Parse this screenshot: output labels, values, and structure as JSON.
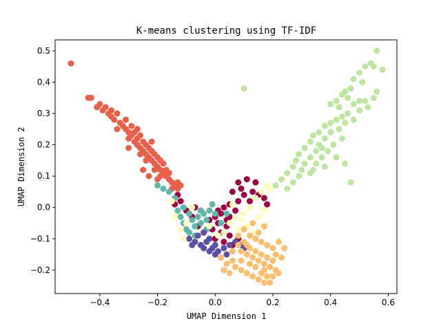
{
  "chart_data": {
    "type": "scatter",
    "title": "K-means clustering using TF-IDF",
    "xlabel": "UMAP Dimension 1",
    "ylabel": "UMAP Dimension 2",
    "xlim": [
      -0.555,
      0.63
    ],
    "ylim": [
      -0.275,
      0.535
    ],
    "xticks": [
      -0.4,
      -0.2,
      0.0,
      0.2,
      0.4,
      0.6
    ],
    "xtick_labels": [
      "−0.4",
      "−0.2",
      "0.0",
      "0.2",
      "0.4",
      "0.6"
    ],
    "yticks": [
      -0.2,
      -0.1,
      0.0,
      0.1,
      0.2,
      0.3,
      0.4,
      0.5
    ],
    "ytick_labels": [
      "−0.2",
      "−0.1",
      "0.0",
      "0.1",
      "0.2",
      "0.3",
      "0.4",
      "0.5"
    ],
    "grid": false,
    "legend": "none",
    "series": [
      {
        "color": "#e8604a",
        "points": [
          [
            -0.5,
            0.46
          ],
          [
            -0.44,
            0.35
          ],
          [
            -0.43,
            0.35
          ],
          [
            -0.41,
            0.32
          ],
          [
            -0.4,
            0.33
          ],
          [
            -0.39,
            0.31
          ],
          [
            -0.38,
            0.32
          ],
          [
            -0.37,
            0.3
          ],
          [
            -0.36,
            0.29
          ],
          [
            -0.36,
            0.31
          ],
          [
            -0.35,
            0.28
          ],
          [
            -0.34,
            0.3
          ],
          [
            -0.33,
            0.27
          ],
          [
            -0.34,
            0.25
          ],
          [
            -0.32,
            0.26
          ],
          [
            -0.31,
            0.25
          ],
          [
            -0.31,
            0.28
          ],
          [
            -0.3,
            0.24
          ],
          [
            -0.3,
            0.22
          ],
          [
            -0.29,
            0.26
          ],
          [
            -0.29,
            0.23
          ],
          [
            -0.28,
            0.21
          ],
          [
            -0.28,
            0.24
          ],
          [
            -0.27,
            0.22
          ],
          [
            -0.27,
            0.2
          ],
          [
            -0.26,
            0.19
          ],
          [
            -0.26,
            0.23
          ],
          [
            -0.25,
            0.18
          ],
          [
            -0.25,
            0.21
          ],
          [
            -0.24,
            0.17
          ],
          [
            -0.24,
            0.2
          ],
          [
            -0.23,
            0.16
          ],
          [
            -0.23,
            0.19
          ],
          [
            -0.22,
            0.15
          ],
          [
            -0.22,
            0.18
          ],
          [
            -0.21,
            0.14
          ],
          [
            -0.21,
            0.17
          ],
          [
            -0.2,
            0.13
          ],
          [
            -0.2,
            0.16
          ],
          [
            -0.19,
            0.12
          ],
          [
            -0.19,
            0.15
          ],
          [
            -0.18,
            0.11
          ],
          [
            -0.18,
            0.14
          ],
          [
            -0.17,
            0.1
          ],
          [
            -0.17,
            0.12
          ],
          [
            -0.16,
            0.09
          ],
          [
            -0.16,
            0.11
          ],
          [
            -0.15,
            0.08
          ],
          [
            -0.14,
            0.07
          ],
          [
            -0.13,
            0.08
          ],
          [
            -0.12,
            0.07
          ],
          [
            -0.26,
            0.17
          ],
          [
            -0.24,
            0.15
          ],
          [
            -0.21,
            0.12
          ],
          [
            -0.19,
            0.1
          ],
          [
            -0.22,
            0.21
          ],
          [
            -0.27,
            0.25
          ],
          [
            -0.3,
            0.19
          ],
          [
            -0.25,
            0.12
          ],
          [
            -0.23,
            0.1
          ],
          [
            -0.2,
            0.09
          ],
          [
            -0.15,
            0.06
          ],
          [
            -0.13,
            0.06
          ]
        ]
      },
      {
        "color": "#bde5a0",
        "points": [
          [
            0.1,
            0.38
          ],
          [
            0.56,
            0.5
          ],
          [
            0.54,
            0.46
          ],
          [
            0.52,
            0.45
          ],
          [
            0.55,
            0.45
          ],
          [
            0.58,
            0.44
          ],
          [
            0.5,
            0.43
          ],
          [
            0.48,
            0.41
          ],
          [
            0.47,
            0.38
          ],
          [
            0.45,
            0.37
          ],
          [
            0.44,
            0.36
          ],
          [
            0.46,
            0.35
          ],
          [
            0.42,
            0.34
          ],
          [
            0.4,
            0.33
          ],
          [
            0.43,
            0.32
          ],
          [
            0.48,
            0.33
          ],
          [
            0.52,
            0.34
          ],
          [
            0.55,
            0.35
          ],
          [
            0.53,
            0.32
          ],
          [
            0.5,
            0.31
          ],
          [
            0.46,
            0.3
          ],
          [
            0.44,
            0.29
          ],
          [
            0.42,
            0.28
          ],
          [
            0.48,
            0.28
          ],
          [
            0.4,
            0.27
          ],
          [
            0.45,
            0.27
          ],
          [
            0.38,
            0.26
          ],
          [
            0.43,
            0.25
          ],
          [
            0.36,
            0.24
          ],
          [
            0.4,
            0.24
          ],
          [
            0.34,
            0.23
          ],
          [
            0.38,
            0.22
          ],
          [
            0.44,
            0.22
          ],
          [
            0.33,
            0.21
          ],
          [
            0.36,
            0.2
          ],
          [
            0.41,
            0.2
          ],
          [
            0.31,
            0.19
          ],
          [
            0.35,
            0.18
          ],
          [
            0.39,
            0.18
          ],
          [
            0.29,
            0.17
          ],
          [
            0.33,
            0.16
          ],
          [
            0.37,
            0.16
          ],
          [
            0.42,
            0.16
          ],
          [
            0.28,
            0.15
          ],
          [
            0.31,
            0.14
          ],
          [
            0.35,
            0.14
          ],
          [
            0.27,
            0.13
          ],
          [
            0.3,
            0.12
          ],
          [
            0.34,
            0.12
          ],
          [
            0.25,
            0.11
          ],
          [
            0.29,
            0.1
          ],
          [
            0.33,
            0.11
          ],
          [
            0.23,
            0.09
          ],
          [
            0.27,
            0.08
          ],
          [
            0.21,
            0.07
          ],
          [
            0.25,
            0.06
          ],
          [
            0.38,
            0.13
          ],
          [
            0.45,
            0.14
          ],
          [
            0.37,
            0.19
          ],
          [
            0.47,
            0.08
          ],
          [
            0.5,
            0.34
          ],
          [
            0.56,
            0.37
          ],
          [
            0.51,
            0.4
          ]
        ]
      },
      {
        "color": "#9e0142",
        "points": [
          [
            0.08,
            0.08
          ],
          [
            0.11,
            0.09
          ],
          [
            0.14,
            0.08
          ],
          [
            0.09,
            0.06
          ],
          [
            0.13,
            0.05
          ],
          [
            0.06,
            0.05
          ],
          [
            0.1,
            0.04
          ],
          [
            0.15,
            0.04
          ],
          [
            0.17,
            0.03
          ],
          [
            0.08,
            0.02
          ],
          [
            0.12,
            0.02
          ],
          [
            0.18,
            0.01
          ],
          [
            0.05,
            0.01
          ],
          [
            0.03,
            0.0
          ],
          [
            0.07,
            -0.01
          ],
          [
            0.02,
            -0.02
          ],
          [
            0.05,
            -0.03
          ],
          [
            0.0,
            -0.03
          ],
          [
            -0.02,
            -0.04
          ],
          [
            0.01,
            -0.05
          ],
          [
            0.04,
            -0.06
          ],
          [
            -0.01,
            -0.07
          ],
          [
            0.02,
            -0.08
          ],
          [
            0.05,
            -0.09
          ],
          [
            0.0,
            -0.1
          ],
          [
            0.03,
            -0.11
          ],
          [
            -0.04,
            -0.08
          ],
          [
            -0.06,
            -0.06
          ],
          [
            -0.08,
            -0.03
          ],
          [
            -0.1,
            -0.01
          ],
          [
            -0.12,
            0.02
          ],
          [
            -0.13,
            0.04
          ],
          [
            -0.14,
            0.01
          ],
          [
            -0.07,
            0.0
          ],
          [
            -0.05,
            -0.01
          ],
          [
            0.06,
            -0.12
          ],
          [
            0.08,
            -0.1
          ],
          [
            0.04,
            -0.04
          ],
          [
            0.01,
            -0.01
          ]
        ]
      },
      {
        "color": "#5eb7a8",
        "points": [
          [
            -0.2,
            0.07
          ],
          [
            -0.18,
            0.06
          ],
          [
            -0.16,
            0.05
          ],
          [
            -0.14,
            0.03
          ],
          [
            -0.13,
            -0.01
          ],
          [
            -0.12,
            -0.03
          ],
          [
            -0.11,
            -0.05
          ],
          [
            -0.1,
            -0.07
          ],
          [
            -0.09,
            -0.02
          ],
          [
            -0.08,
            -0.04
          ],
          [
            -0.07,
            -0.06
          ],
          [
            -0.06,
            -0.03
          ],
          [
            -0.05,
            -0.05
          ],
          [
            -0.04,
            -0.02
          ],
          [
            -0.03,
            -0.04
          ],
          [
            -0.02,
            -0.01
          ],
          [
            -0.01,
            0.01
          ],
          [
            0.0,
            -0.02
          ],
          [
            0.02,
            -0.05
          ],
          [
            0.04,
            -0.02
          ],
          [
            -0.09,
            -0.08
          ],
          [
            -0.07,
            -0.09
          ],
          [
            -0.03,
            -0.07
          ],
          [
            -0.11,
            0.0
          ],
          [
            -0.05,
            -0.01
          ]
        ]
      },
      {
        "color": "#5e4fa2",
        "points": [
          [
            -0.09,
            -0.1
          ],
          [
            -0.07,
            -0.11
          ],
          [
            -0.05,
            -0.12
          ],
          [
            -0.04,
            -0.13
          ],
          [
            -0.03,
            -0.11
          ],
          [
            -0.02,
            -0.14
          ],
          [
            -0.01,
            -0.13
          ],
          [
            0.0,
            -0.15
          ],
          [
            0.01,
            -0.14
          ],
          [
            0.02,
            -0.16
          ],
          [
            0.03,
            -0.13
          ],
          [
            0.04,
            -0.15
          ],
          [
            0.05,
            -0.12
          ],
          [
            -0.06,
            -0.09
          ],
          [
            -0.08,
            -0.12
          ],
          [
            0.06,
            -0.14
          ],
          [
            0.07,
            -0.11
          ],
          [
            0.0,
            -0.12
          ],
          [
            -0.02,
            -0.1
          ],
          [
            0.09,
            -0.12
          ],
          [
            0.1,
            -0.13
          ],
          [
            -0.04,
            -0.08
          ]
        ]
      },
      {
        "color": "#fffdbb",
        "points": [
          [
            0.18,
            0.07
          ],
          [
            0.16,
            0.05
          ],
          [
            0.19,
            0.06
          ],
          [
            0.14,
            0.03
          ],
          [
            0.12,
            0.0
          ],
          [
            0.1,
            -0.02
          ],
          [
            0.09,
            -0.04
          ],
          [
            0.11,
            -0.06
          ],
          [
            0.08,
            -0.07
          ],
          [
            0.07,
            -0.03
          ],
          [
            0.13,
            -0.08
          ],
          [
            0.06,
            0.01
          ],
          [
            -0.1,
            -0.05
          ],
          [
            -0.12,
            -0.07
          ],
          [
            -0.11,
            -0.1
          ],
          [
            -0.14,
            -0.03
          ],
          [
            -0.02,
            -0.06
          ],
          [
            0.01,
            -0.09
          ],
          [
            0.03,
            -0.08
          ],
          [
            0.15,
            -0.03
          ],
          [
            -0.08,
            0.0
          ],
          [
            -0.15,
            0.02
          ],
          [
            0.17,
            -0.01
          ],
          [
            0.05,
            -0.05
          ]
        ]
      },
      {
        "color": "#fdbf6f",
        "points": [
          [
            0.1,
            -0.07
          ],
          [
            0.12,
            -0.09
          ],
          [
            0.14,
            -0.1
          ],
          [
            0.16,
            -0.11
          ],
          [
            0.18,
            -0.12
          ],
          [
            0.2,
            -0.13
          ],
          [
            0.08,
            -0.12
          ],
          [
            0.09,
            -0.14
          ],
          [
            0.11,
            -0.15
          ],
          [
            0.13,
            -0.16
          ],
          [
            0.15,
            -0.17
          ],
          [
            0.17,
            -0.18
          ],
          [
            0.19,
            -0.19
          ],
          [
            0.21,
            -0.2
          ],
          [
            0.06,
            -0.17
          ],
          [
            0.07,
            -0.19
          ],
          [
            0.09,
            -0.2
          ],
          [
            0.11,
            -0.21
          ],
          [
            0.13,
            -0.22
          ],
          [
            0.15,
            -0.23
          ],
          [
            0.17,
            -0.24
          ],
          [
            0.05,
            -0.21
          ],
          [
            0.04,
            -0.18
          ],
          [
            0.03,
            -0.2
          ],
          [
            0.12,
            -0.18
          ],
          [
            0.14,
            -0.14
          ],
          [
            0.16,
            -0.15
          ],
          [
            0.18,
            -0.16
          ],
          [
            0.2,
            -0.17
          ],
          [
            0.22,
            -0.21
          ],
          [
            0.21,
            -0.15
          ],
          [
            0.23,
            -0.16
          ],
          [
            0.24,
            -0.13
          ],
          [
            0.22,
            -0.11
          ],
          [
            0.1,
            -0.11
          ],
          [
            0.08,
            -0.09
          ],
          [
            0.16,
            -0.21
          ],
          [
            0.18,
            -0.22
          ],
          [
            0.19,
            -0.24
          ],
          [
            0.14,
            -0.19
          ],
          [
            0.12,
            -0.13
          ],
          [
            0.17,
            -0.2
          ],
          [
            0.2,
            -0.22
          ],
          [
            0.02,
            -0.16
          ],
          [
            0.06,
            -0.14
          ],
          [
            0.15,
            -0.08
          ],
          [
            0.17,
            -0.06
          ],
          [
            0.13,
            -0.05
          ],
          [
            0.11,
            -0.12
          ],
          [
            0.09,
            -0.17
          ]
        ]
      }
    ]
  }
}
